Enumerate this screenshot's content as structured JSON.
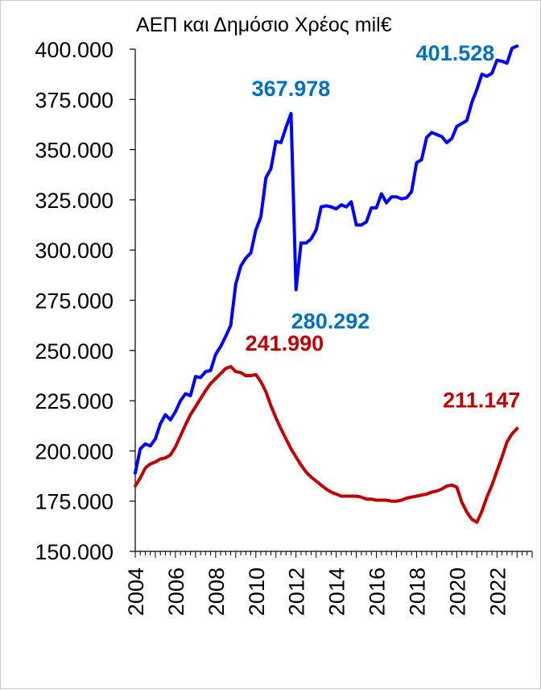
{
  "chart_data": {
    "type": "line",
    "title": "ΑΕΠ και Δημόσιο Χρέος mil€",
    "xlabel": "",
    "ylabel": "",
    "ylim": [
      150000,
      400000
    ],
    "yticks": [
      "150.000",
      "175.000",
      "200.000",
      "225.000",
      "250.000",
      "275.000",
      "300.000",
      "325.000",
      "350.000",
      "375.000",
      "400.000"
    ],
    "xticks": [
      "2004",
      "2006",
      "2008",
      "2010",
      "2012",
      "2014",
      "2016",
      "2018",
      "2020",
      "2022"
    ],
    "xlim": [
      2004,
      2023.75
    ],
    "grid": false,
    "series": [
      {
        "color": "#0000ff",
        "points": [
          [
            2004.0,
            189000
          ],
          [
            2004.25,
            201000
          ],
          [
            2004.5,
            203500
          ],
          [
            2004.75,
            202500
          ],
          [
            2005.0,
            206000
          ],
          [
            2005.25,
            213500
          ],
          [
            2005.5,
            218000
          ],
          [
            2005.75,
            215500
          ],
          [
            2006.0,
            219500
          ],
          [
            2006.25,
            225000
          ],
          [
            2006.5,
            228500
          ],
          [
            2006.75,
            227500
          ],
          [
            2007.0,
            237000
          ],
          [
            2007.25,
            236500
          ],
          [
            2007.5,
            239500
          ],
          [
            2007.75,
            240000
          ],
          [
            2008.0,
            248000
          ],
          [
            2008.25,
            252000
          ],
          [
            2008.5,
            257000
          ],
          [
            2008.75,
            262500
          ],
          [
            2009.0,
            283000
          ],
          [
            2009.25,
            292000
          ],
          [
            2009.5,
            296000
          ],
          [
            2009.75,
            298500
          ],
          [
            2010.0,
            310000
          ],
          [
            2010.25,
            316500
          ],
          [
            2010.5,
            336000
          ],
          [
            2010.75,
            340500
          ],
          [
            2011.0,
            354000
          ],
          [
            2011.25,
            353500
          ],
          [
            2011.5,
            361000
          ],
          [
            2011.75,
            367978
          ],
          [
            2012.0,
            280292
          ],
          [
            2012.25,
            303500
          ],
          [
            2012.5,
            303500
          ],
          [
            2012.75,
            305500
          ],
          [
            2013.0,
            310000
          ],
          [
            2013.25,
            321500
          ],
          [
            2013.5,
            322000
          ],
          [
            2013.75,
            321500
          ],
          [
            2014.0,
            320500
          ],
          [
            2014.25,
            322500
          ],
          [
            2014.5,
            321500
          ],
          [
            2014.75,
            324000
          ],
          [
            2015.0,
            312500
          ],
          [
            2015.25,
            312500
          ],
          [
            2015.5,
            314000
          ],
          [
            2015.75,
            321000
          ],
          [
            2016.0,
            321000
          ],
          [
            2016.25,
            328000
          ],
          [
            2016.5,
            323500
          ],
          [
            2016.75,
            326500
          ],
          [
            2017.0,
            326500
          ],
          [
            2017.25,
            325500
          ],
          [
            2017.5,
            326000
          ],
          [
            2017.75,
            329000
          ],
          [
            2018.0,
            343500
          ],
          [
            2018.25,
            345000
          ],
          [
            2018.5,
            356000
          ],
          [
            2018.75,
            358500
          ],
          [
            2019.0,
            357500
          ],
          [
            2019.25,
            356500
          ],
          [
            2019.5,
            353500
          ],
          [
            2019.75,
            355500
          ],
          [
            2020.0,
            361500
          ],
          [
            2020.25,
            363000
          ],
          [
            2020.5,
            364500
          ],
          [
            2020.75,
            373500
          ],
          [
            2021.0,
            380000
          ],
          [
            2021.25,
            387500
          ],
          [
            2021.5,
            386500
          ],
          [
            2021.75,
            388000
          ],
          [
            2022.0,
            394500
          ],
          [
            2022.25,
            394000
          ],
          [
            2022.5,
            393000
          ],
          [
            2022.75,
            400500
          ],
          [
            2023.0,
            401528
          ]
        ]
      },
      {
        "color": "#c00000",
        "points": [
          [
            2004.0,
            182500
          ],
          [
            2004.25,
            186500
          ],
          [
            2004.5,
            191500
          ],
          [
            2004.75,
            193500
          ],
          [
            2005.0,
            194500
          ],
          [
            2005.25,
            196000
          ],
          [
            2005.5,
            196500
          ],
          [
            2005.75,
            198000
          ],
          [
            2006.0,
            202000
          ],
          [
            2006.25,
            207500
          ],
          [
            2006.5,
            213000
          ],
          [
            2006.75,
            218000
          ],
          [
            2007.0,
            222000
          ],
          [
            2007.25,
            226000
          ],
          [
            2007.5,
            230000
          ],
          [
            2007.75,
            233500
          ],
          [
            2008.0,
            236000
          ],
          [
            2008.25,
            238500
          ],
          [
            2008.5,
            241000
          ],
          [
            2008.75,
            241990
          ],
          [
            2009.0,
            239500
          ],
          [
            2009.25,
            239000
          ],
          [
            2009.5,
            237500
          ],
          [
            2009.75,
            237500
          ],
          [
            2010.0,
            238000
          ],
          [
            2010.25,
            234500
          ],
          [
            2010.5,
            229500
          ],
          [
            2010.75,
            222500
          ],
          [
            2011.0,
            216500
          ],
          [
            2011.25,
            211000
          ],
          [
            2011.5,
            206000
          ],
          [
            2011.75,
            201000
          ],
          [
            2012.0,
            197000
          ],
          [
            2012.25,
            193000
          ],
          [
            2012.5,
            189500
          ],
          [
            2012.75,
            187000
          ],
          [
            2013.0,
            185000
          ],
          [
            2013.25,
            183000
          ],
          [
            2013.5,
            181000
          ],
          [
            2013.75,
            179500
          ],
          [
            2014.0,
            178500
          ],
          [
            2014.25,
            177500
          ],
          [
            2014.5,
            177500
          ],
          [
            2014.75,
            177500
          ],
          [
            2015.0,
            177500
          ],
          [
            2015.25,
            177000
          ],
          [
            2015.5,
            176000
          ],
          [
            2015.75,
            176000
          ],
          [
            2016.0,
            175500
          ],
          [
            2016.25,
            175500
          ],
          [
            2016.5,
            175500
          ],
          [
            2016.75,
            175000
          ],
          [
            2017.0,
            175000
          ],
          [
            2017.25,
            175500
          ],
          [
            2017.5,
            176500
          ],
          [
            2017.75,
            177000
          ],
          [
            2018.0,
            177500
          ],
          [
            2018.25,
            178000
          ],
          [
            2018.5,
            178500
          ],
          [
            2018.75,
            179500
          ],
          [
            2019.0,
            180000
          ],
          [
            2019.25,
            181000
          ],
          [
            2019.5,
            182500
          ],
          [
            2019.75,
            183000
          ],
          [
            2020.0,
            182000
          ],
          [
            2020.25,
            174500
          ],
          [
            2020.5,
            169500
          ],
          [
            2020.75,
            166000
          ],
          [
            2021.0,
            164500
          ],
          [
            2021.25,
            170000
          ],
          [
            2021.5,
            177000
          ],
          [
            2021.75,
            183000
          ],
          [
            2022.0,
            190000
          ],
          [
            2022.25,
            197000
          ],
          [
            2022.5,
            204500
          ],
          [
            2022.75,
            208500
          ],
          [
            2023.0,
            211147
          ]
        ]
      }
    ],
    "annotations": [
      {
        "text": "367.978",
        "series": 0,
        "at": [
          2011.75,
          367978
        ],
        "anchor": "above",
        "color": "#0070c0"
      },
      {
        "text": "280.292",
        "series": 0,
        "at": [
          2012.0,
          280292
        ],
        "anchor": "below-right",
        "color": "#0070c0"
      },
      {
        "text": "401.528",
        "series": 0,
        "at": [
          2023.0,
          401528
        ],
        "anchor": "left",
        "color": "#0070c0"
      },
      {
        "text": "241.990",
        "series": 1,
        "at": [
          2008.75,
          241990
        ],
        "anchor": "above-right",
        "color": "#c00000"
      },
      {
        "text": "211.147",
        "series": 1,
        "at": [
          2023.0,
          211147
        ],
        "anchor": "above-left",
        "color": "#c00000"
      }
    ]
  }
}
